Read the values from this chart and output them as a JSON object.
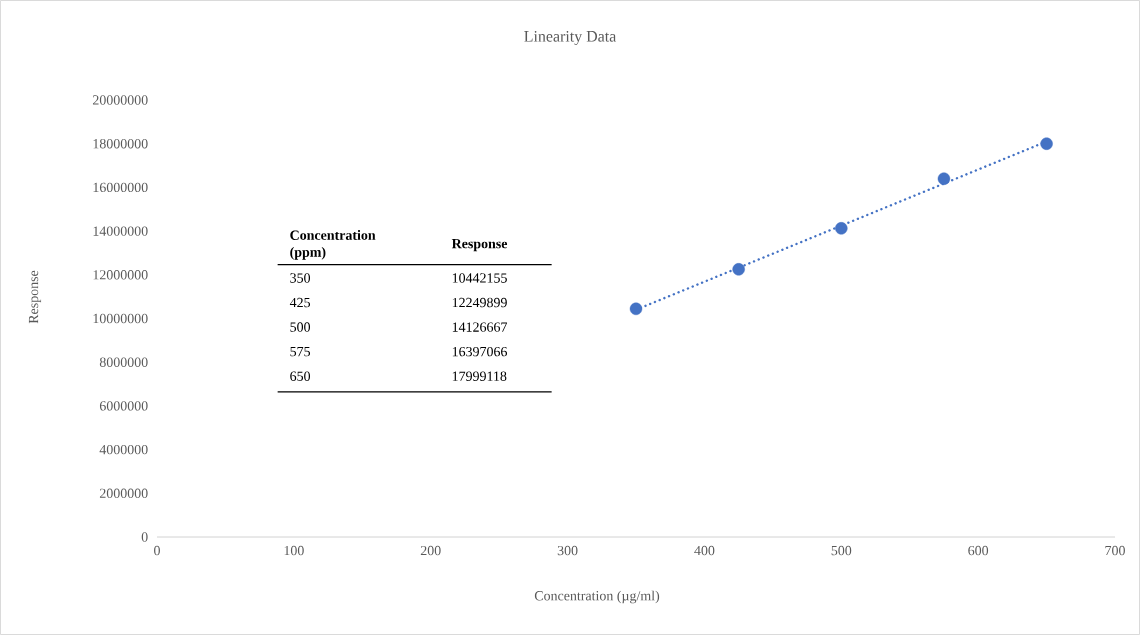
{
  "chart_data": {
    "type": "scatter",
    "title": "Linearity Data",
    "xlabel": "Concentration (µg/ml)",
    "ylabel": "Response",
    "annotations": [
      "**Concentration (ppm)**",
      "**Response**",
      "350",
      "10442155",
      "425",
      "12249899",
      "500",
      "14126667",
      "575",
      "16397066",
      "650",
      "17999118"
    ],
    "series": [
      {
        "color": "#4472c4",
        "marker": "circle",
        "x": [
          350,
          425,
          500,
          575,
          650
        ],
        "values": [
          10442155,
          12249899,
          14126667,
          16397066,
          17999118
        ]
      },
      {
        "type": "line",
        "color": "#4472c4",
        "line_style": "dotted",
        "marker": "none",
        "x": [
          350,
          650
        ],
        "values": [
          10400000,
          18100000
        ]
      }
    ],
    "xlim": [
      0,
      700
    ],
    "xticks": [
      0,
      100,
      200,
      300,
      400,
      500,
      600,
      700
    ],
    "ylim": [
      0,
      20000000
    ],
    "yticks": [
      0,
      2000000,
      4000000,
      6000000,
      8000000,
      10000000,
      12000000,
      14000000,
      16000000,
      18000000,
      20000000
    ],
    "grid": false
  }
}
